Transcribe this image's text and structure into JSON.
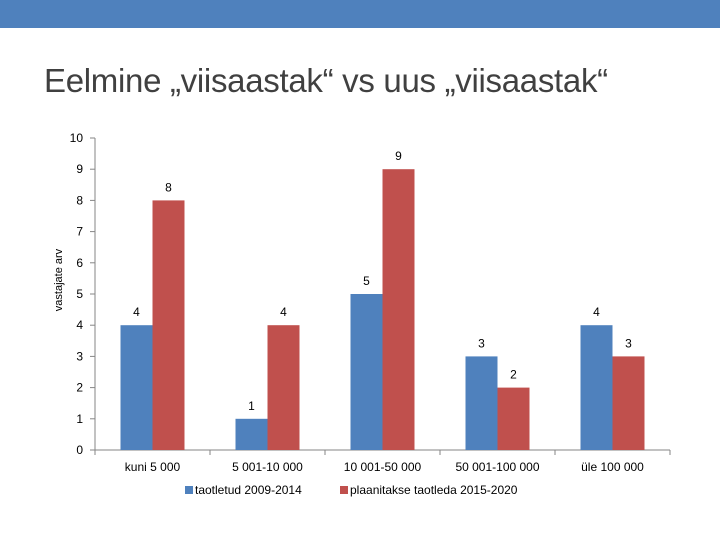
{
  "slide": {
    "title": "Eelmine „viisaastak“ vs uus „viisaastak“",
    "accent_color": "#4f81bd"
  },
  "chart_data": {
    "type": "bar",
    "title": "",
    "xlabel": "",
    "ylabel": "vastajate arv",
    "ylim": [
      0,
      10
    ],
    "yticks": [
      0,
      1,
      2,
      3,
      4,
      5,
      6,
      7,
      8,
      9,
      10
    ],
    "grid": false,
    "legend_position": "bottom",
    "categories": [
      "kuni 5 000",
      "5 001-10 000",
      "10 001-50 000",
      "50 001-100 000",
      "üle 100 000"
    ],
    "series": [
      {
        "name": "taotletud 2009-2014",
        "color": "#4f81bd",
        "values": [
          4,
          1,
          5,
          3,
          4
        ]
      },
      {
        "name": "plaanitakse taotleda 2015-2020",
        "color": "#c0504d",
        "values": [
          8,
          4,
          9,
          2,
          3
        ]
      }
    ]
  }
}
